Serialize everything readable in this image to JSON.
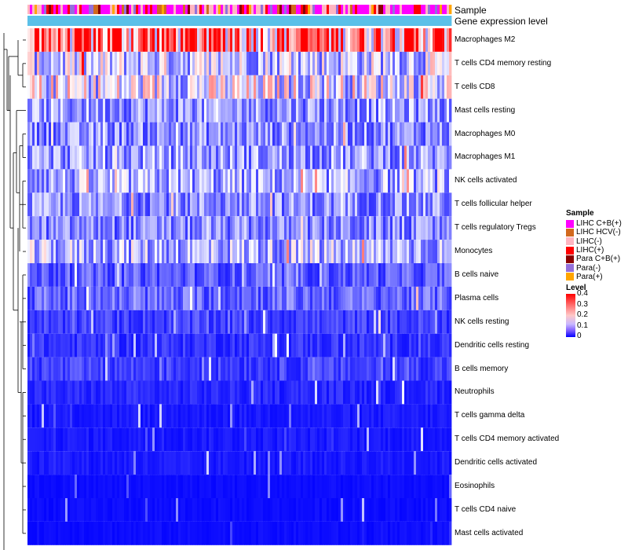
{
  "chart_data": {
    "type": "heatmap",
    "annotation_tracks": [
      "Sample",
      "Gene expression level"
    ],
    "rows": [
      {
        "label": "Macrophages M2",
        "mean": 0.32
      },
      {
        "label": "T cells CD4 memory resting",
        "mean": 0.16
      },
      {
        "label": "T cells CD8",
        "mean": 0.18
      },
      {
        "label": "Mast cells resting",
        "mean": 0.12
      },
      {
        "label": "Macrophages M0",
        "mean": 0.11
      },
      {
        "label": "Macrophages M1",
        "mean": 0.12
      },
      {
        "label": "NK cells activated",
        "mean": 0.13
      },
      {
        "label": "T cells follicular helper",
        "mean": 0.11
      },
      {
        "label": "T cells regulatory  Tregs",
        "mean": 0.1
      },
      {
        "label": "Monocytes",
        "mean": 0.14
      },
      {
        "label": "B cells naive",
        "mean": 0.07
      },
      {
        "label": "Plasma cells",
        "mean": 0.08
      },
      {
        "label": "NK cells resting",
        "mean": 0.05
      },
      {
        "label": "Dendritic cells resting",
        "mean": 0.04
      },
      {
        "label": "B cells memory",
        "mean": 0.05
      },
      {
        "label": "Neutrophils",
        "mean": 0.03
      },
      {
        "label": "T cells gamma delta",
        "mean": 0.02
      },
      {
        "label": "T cells CD4 memory activated",
        "mean": 0.02
      },
      {
        "label": "Dendritic cells activated",
        "mean": 0.02
      },
      {
        "label": "Eosinophils",
        "mean": 0.01
      },
      {
        "label": "T cells CD4 naive",
        "mean": 0.01
      },
      {
        "label": "Mast cells activated",
        "mean": 0.01
      }
    ],
    "legend_sample": {
      "title": "Sample",
      "entries": [
        {
          "label": "LIHC C+B(+)",
          "color": "#ff00ff"
        },
        {
          "label": "LIHC HCV(-)",
          "color": "#d2691e"
        },
        {
          "label": "LIHC(-)",
          "color": "#ffb6c1"
        },
        {
          "label": "LIHC(+)",
          "color": "#ff0000"
        },
        {
          "label": "Para C+B(+)",
          "color": "#8b0000"
        },
        {
          "label": "Para(-)",
          "color": "#9370db"
        },
        {
          "label": "Para(+)",
          "color": "#ffa500"
        }
      ]
    },
    "legend_level": {
      "title": "Level",
      "ticks": [
        "0.4",
        "0.3",
        "0.2",
        "0.1",
        "0"
      ],
      "range": [
        0,
        0.4
      ],
      "colors": [
        "#0000ff",
        "#ffffff",
        "#ff0000"
      ]
    },
    "expression_track_color": "#5bc0e8"
  }
}
